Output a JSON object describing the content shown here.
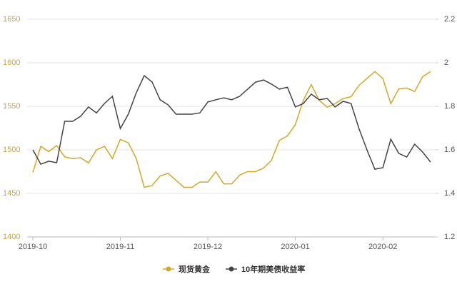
{
  "chart_data": {
    "type": "line",
    "categories": [
      "2019-10",
      null,
      null,
      null,
      null,
      null,
      null,
      null,
      null,
      null,
      null,
      "2019-11",
      null,
      null,
      null,
      null,
      null,
      null,
      null,
      null,
      null,
      null,
      "2019-12",
      null,
      null,
      null,
      null,
      null,
      null,
      null,
      null,
      null,
      null,
      "2020-01",
      null,
      null,
      null,
      null,
      null,
      null,
      null,
      null,
      null,
      null,
      "2020-02",
      null,
      null,
      null,
      null,
      null,
      null
    ],
    "series": [
      {
        "name": "现货黄金",
        "color": "#d4a82a",
        "axis": "y",
        "values": [
          1474,
          1504,
          1498,
          1505,
          1492,
          1490,
          1491,
          1485,
          1500,
          1504,
          1490,
          1512,
          1508,
          1490,
          1457,
          1459,
          1470,
          1473,
          1465,
          1457,
          1457,
          1463,
          1463,
          1475,
          1461,
          1461,
          1471,
          1475,
          1475,
          1479,
          1488,
          1511,
          1516,
          1529,
          1557,
          1575,
          1557,
          1549,
          1553,
          1559,
          1561,
          1574,
          1582,
          1590,
          1582,
          1553,
          1570,
          1571,
          1567,
          1584,
          1590
        ]
      },
      {
        "name": "10年期美债收益率",
        "color": "#444444",
        "axis": "y2",
        "values": [
          1.6,
          1.534,
          1.548,
          1.541,
          1.731,
          1.731,
          1.754,
          1.797,
          1.77,
          1.813,
          1.846,
          1.698,
          1.764,
          1.862,
          1.941,
          1.911,
          1.83,
          1.807,
          1.764,
          1.764,
          1.764,
          1.77,
          1.82,
          1.83,
          1.839,
          1.83,
          1.846,
          1.879,
          1.911,
          1.921,
          1.902,
          1.879,
          1.888,
          1.797,
          1.813,
          1.856,
          1.83,
          1.836,
          1.797,
          1.823,
          1.813,
          1.698,
          1.6,
          1.511,
          1.518,
          1.649,
          1.584,
          1.567,
          1.626,
          1.59,
          1.544
        ]
      }
    ],
    "ylim": [
      1400,
      1650
    ],
    "yticks": [
      1400,
      1450,
      1500,
      1550,
      1600,
      1650
    ],
    "y2lim": [
      1.2,
      2.2
    ],
    "y2ticks": [
      1.2,
      1.4,
      1.6,
      1.8,
      2,
      2.2
    ],
    "grid": true,
    "legend": "bottom"
  }
}
